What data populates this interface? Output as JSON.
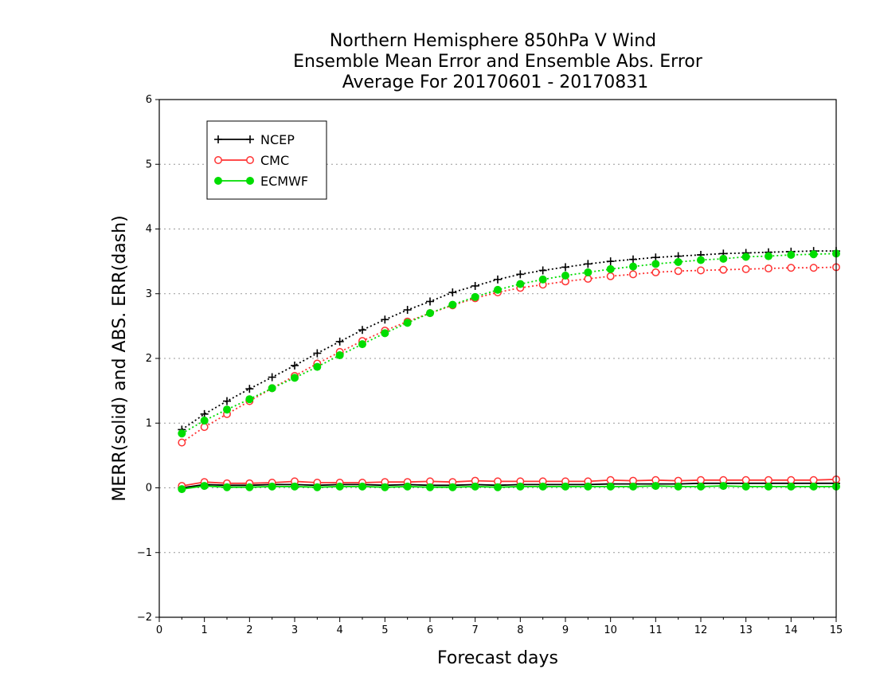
{
  "chart_data": {
    "type": "line",
    "title": [
      "Northern Hemisphere 850hPa V Wind",
      "Ensemble Mean Error and Ensemble Abs. Error",
      "Average For 20170601 - 20170831"
    ],
    "xlabel": "Forecast days",
    "ylabel": "MERR(solid) and ABS. ERR(dash)",
    "xlim": [
      0,
      15
    ],
    "ylim": [
      -2,
      6
    ],
    "x_ticks": [
      0,
      1,
      2,
      3,
      4,
      5,
      6,
      7,
      8,
      9,
      10,
      11,
      12,
      13,
      14,
      15
    ],
    "y_ticks": [
      -2,
      -1,
      0,
      1,
      2,
      3,
      4,
      5,
      6
    ],
    "y_tick_labels": [
      "−2",
      "−1",
      "0",
      "1",
      "2",
      "3",
      "4",
      "5",
      "6"
    ],
    "grid": true,
    "legend_position": "top-left",
    "x": [
      0.5,
      1,
      1.5,
      2,
      2.5,
      3,
      3.5,
      4,
      4.5,
      5,
      5.5,
      6,
      6.5,
      7,
      7.5,
      8,
      8.5,
      9,
      9.5,
      10,
      10.5,
      11,
      11.5,
      12,
      12.5,
      13,
      13.5,
      14,
      14.5,
      15
    ],
    "series": [
      {
        "name": "NCEP",
        "color": "#000000",
        "marker": "plus",
        "abs_error": [
          0.9,
          1.14,
          1.34,
          1.53,
          1.71,
          1.89,
          2.08,
          2.26,
          2.44,
          2.6,
          2.75,
          2.88,
          3.02,
          3.12,
          3.22,
          3.3,
          3.36,
          3.41,
          3.46,
          3.5,
          3.53,
          3.56,
          3.58,
          3.6,
          3.62,
          3.63,
          3.64,
          3.65,
          3.66,
          3.66
        ],
        "mean_error": [
          0.0,
          0.05,
          0.04,
          0.04,
          0.05,
          0.05,
          0.04,
          0.05,
          0.05,
          0.04,
          0.05,
          0.04,
          0.04,
          0.05,
          0.04,
          0.05,
          0.05,
          0.05,
          0.05,
          0.06,
          0.06,
          0.06,
          0.06,
          0.07,
          0.07,
          0.07,
          0.07,
          0.07,
          0.07,
          0.07
        ]
      },
      {
        "name": "CMC",
        "color": "#ff3333",
        "marker": "open-circle",
        "abs_error": [
          0.7,
          0.94,
          1.14,
          1.34,
          1.54,
          1.73,
          1.92,
          2.1,
          2.27,
          2.43,
          2.57,
          2.7,
          2.82,
          2.93,
          3.02,
          3.09,
          3.14,
          3.19,
          3.23,
          3.27,
          3.3,
          3.33,
          3.35,
          3.36,
          3.37,
          3.38,
          3.39,
          3.4,
          3.4,
          3.41
        ],
        "mean_error": [
          0.03,
          0.09,
          0.07,
          0.07,
          0.08,
          0.1,
          0.08,
          0.08,
          0.08,
          0.09,
          0.09,
          0.1,
          0.09,
          0.11,
          0.1,
          0.1,
          0.1,
          0.1,
          0.1,
          0.12,
          0.11,
          0.12,
          0.11,
          0.12,
          0.12,
          0.12,
          0.12,
          0.12,
          0.12,
          0.13
        ]
      },
      {
        "name": "ECMWF",
        "color": "#00dd00",
        "marker": "filled-circle",
        "abs_error": [
          0.84,
          1.04,
          1.21,
          1.37,
          1.54,
          1.7,
          1.87,
          2.05,
          2.22,
          2.39,
          2.55,
          2.7,
          2.83,
          2.95,
          3.06,
          3.15,
          3.22,
          3.28,
          3.33,
          3.38,
          3.42,
          3.46,
          3.49,
          3.52,
          3.54,
          3.57,
          3.58,
          3.6,
          3.61,
          3.62
        ],
        "mean_error": [
          -0.02,
          0.03,
          0.01,
          0.01,
          0.02,
          0.02,
          0.01,
          0.02,
          0.02,
          0.01,
          0.02,
          0.01,
          0.01,
          0.02,
          0.01,
          0.02,
          0.02,
          0.02,
          0.02,
          0.02,
          0.02,
          0.03,
          0.02,
          0.02,
          0.03,
          0.02,
          0.02,
          0.02,
          0.02,
          0.02
        ]
      }
    ]
  }
}
